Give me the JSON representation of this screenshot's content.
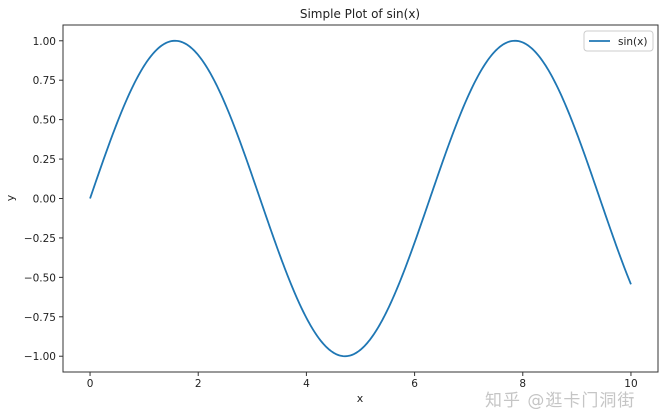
{
  "chart_data": {
    "type": "line",
    "title": "Simple Plot of sin(x)",
    "xlabel": "x",
    "ylabel": "y",
    "xlim": [
      -0.5,
      10.5
    ],
    "ylim": [
      -1.1,
      1.1
    ],
    "xticks": [
      0,
      2,
      4,
      6,
      8,
      10
    ],
    "xtick_labels": [
      "0",
      "2",
      "4",
      "6",
      "8",
      "10"
    ],
    "yticks": [
      1.0,
      0.75,
      0.5,
      0.25,
      0.0,
      -0.25,
      -0.5,
      -0.75,
      -1.0
    ],
    "ytick_labels": [
      "1.00",
      "0.75",
      "0.50",
      "0.25",
      "0.00",
      "−0.25",
      "−0.50",
      "−0.75",
      "−1.00"
    ],
    "grid": false,
    "legend_position": "top-right",
    "series": [
      {
        "name": "sin(x)",
        "function": "sin(x)",
        "x_range": [
          0,
          10
        ],
        "color": "#1f77b4"
      }
    ]
  },
  "watermark": "知乎 @逛卡门洞街"
}
